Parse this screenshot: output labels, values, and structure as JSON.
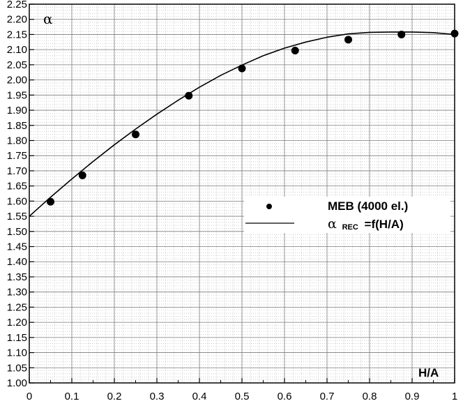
{
  "chart_data": {
    "type": "scatter",
    "title": "",
    "xlabel": "H/A",
    "ylabel": "α",
    "xlim": [
      0,
      1
    ],
    "ylim": [
      1.0,
      2.25
    ],
    "x_ticks": [
      0,
      0.1,
      0.2,
      0.3,
      0.4,
      0.5,
      0.6,
      0.7,
      0.8,
      0.9,
      1
    ],
    "x_tick_labels": [
      "0",
      "0.1",
      "0.2",
      "0.3",
      "0.4",
      "0.5",
      "0.6",
      "0.7",
      "0.8",
      "0.9",
      "1"
    ],
    "y_ticks": [
      1.0,
      1.05,
      1.1,
      1.15,
      1.2,
      1.25,
      1.3,
      1.35,
      1.4,
      1.45,
      1.5,
      1.55,
      1.6,
      1.65,
      1.7,
      1.75,
      1.8,
      1.85,
      1.9,
      1.95,
      2.0,
      2.05,
      2.1,
      2.15,
      2.2,
      2.25
    ],
    "y_tick_labels": [
      "1.00",
      "1.05",
      "1.10",
      "1.15",
      "1.20",
      "1.25",
      "1.30",
      "1.35",
      "1.40",
      "1.45",
      "1.50",
      "1.55",
      "1.60",
      "1.65",
      "1.70",
      "1.75",
      "1.80",
      "1.85",
      "1.90",
      "1.95",
      "2.00",
      "2.05",
      "2.10",
      "2.15",
      "2.20",
      "2.25"
    ],
    "grid": true,
    "minor_grid": true,
    "legend_position": "center-right",
    "series": [
      {
        "name": "MEB (4000 el.)",
        "kind": "scatter",
        "x": [
          0.05,
          0.125,
          0.25,
          0.375,
          0.5,
          0.625,
          0.75,
          0.875,
          1.0
        ],
        "y": [
          1.598,
          1.685,
          1.82,
          1.948,
          2.038,
          2.097,
          2.133,
          2.15,
          2.153
        ]
      },
      {
        "name_main": "α",
        "name_sub": "REC",
        "name_rest": "=f(H/A)",
        "kind": "line",
        "x": [
          0,
          0.05,
          0.1,
          0.15,
          0.2,
          0.25,
          0.3,
          0.35,
          0.4,
          0.45,
          0.5,
          0.55,
          0.6,
          0.65,
          0.7,
          0.75,
          0.8,
          0.85,
          0.9,
          0.95,
          1.0
        ],
        "y": [
          1.55,
          1.613,
          1.673,
          1.731,
          1.786,
          1.838,
          1.887,
          1.933,
          1.976,
          2.015,
          2.049,
          2.08,
          2.105,
          2.125,
          2.141,
          2.152,
          2.157,
          2.158,
          2.158,
          2.156,
          2.15
        ]
      }
    ]
  }
}
